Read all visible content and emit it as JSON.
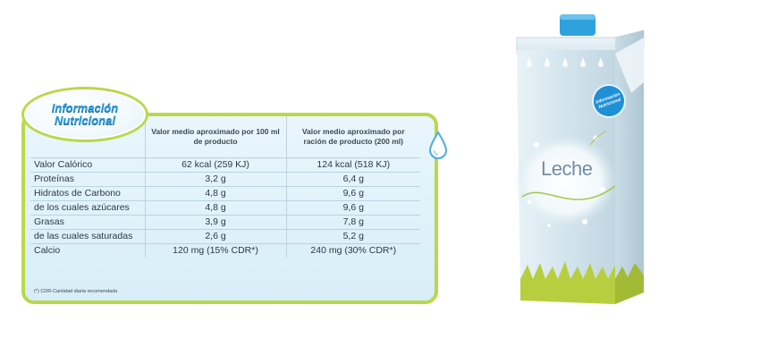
{
  "badge": {
    "line1": "Información",
    "line2": "Nutricional"
  },
  "table": {
    "headers": [
      "",
      "Valor medio aproximado por 100 ml de producto",
      "Valor medio aproximado por ración de producto (200 ml)"
    ],
    "rows": [
      {
        "label": "Valor Calórico",
        "per100": "62 kcal (259 KJ)",
        "perServing": "124 kcal (518 KJ)"
      },
      {
        "label": "Proteínas",
        "per100": "3,2 g",
        "perServing": "6,4 g"
      },
      {
        "label": "Hidratos de Carbono",
        "per100": "4,8 g",
        "perServing": "9,6 g"
      },
      {
        "label": "de los cuales azúcares",
        "per100": "4,8 g",
        "perServing": "9,6 g"
      },
      {
        "label": "Grasas",
        "per100": "3,9 g",
        "perServing": "7,8 g"
      },
      {
        "label": "de las cuales saturadas",
        "per100": "2,6 g",
        "perServing": "5,2 g"
      },
      {
        "label": "Calcio",
        "per100": "120 mg (15% CDR*)",
        "perServing": "240 mg (30% CDR*)"
      }
    ]
  },
  "footnote": "(*) CDR-Cantidad diaria recomendada",
  "carton": {
    "label": "Leche",
    "seal_line1": "Información",
    "seal_line2": "Nutricional"
  },
  "colors": {
    "accent": "#b9d84a",
    "brand_blue": "#2a9ad6",
    "panel_bg": "#e3f3fa"
  },
  "icons": [
    "water-drop-icon",
    "milk-carton-image"
  ]
}
